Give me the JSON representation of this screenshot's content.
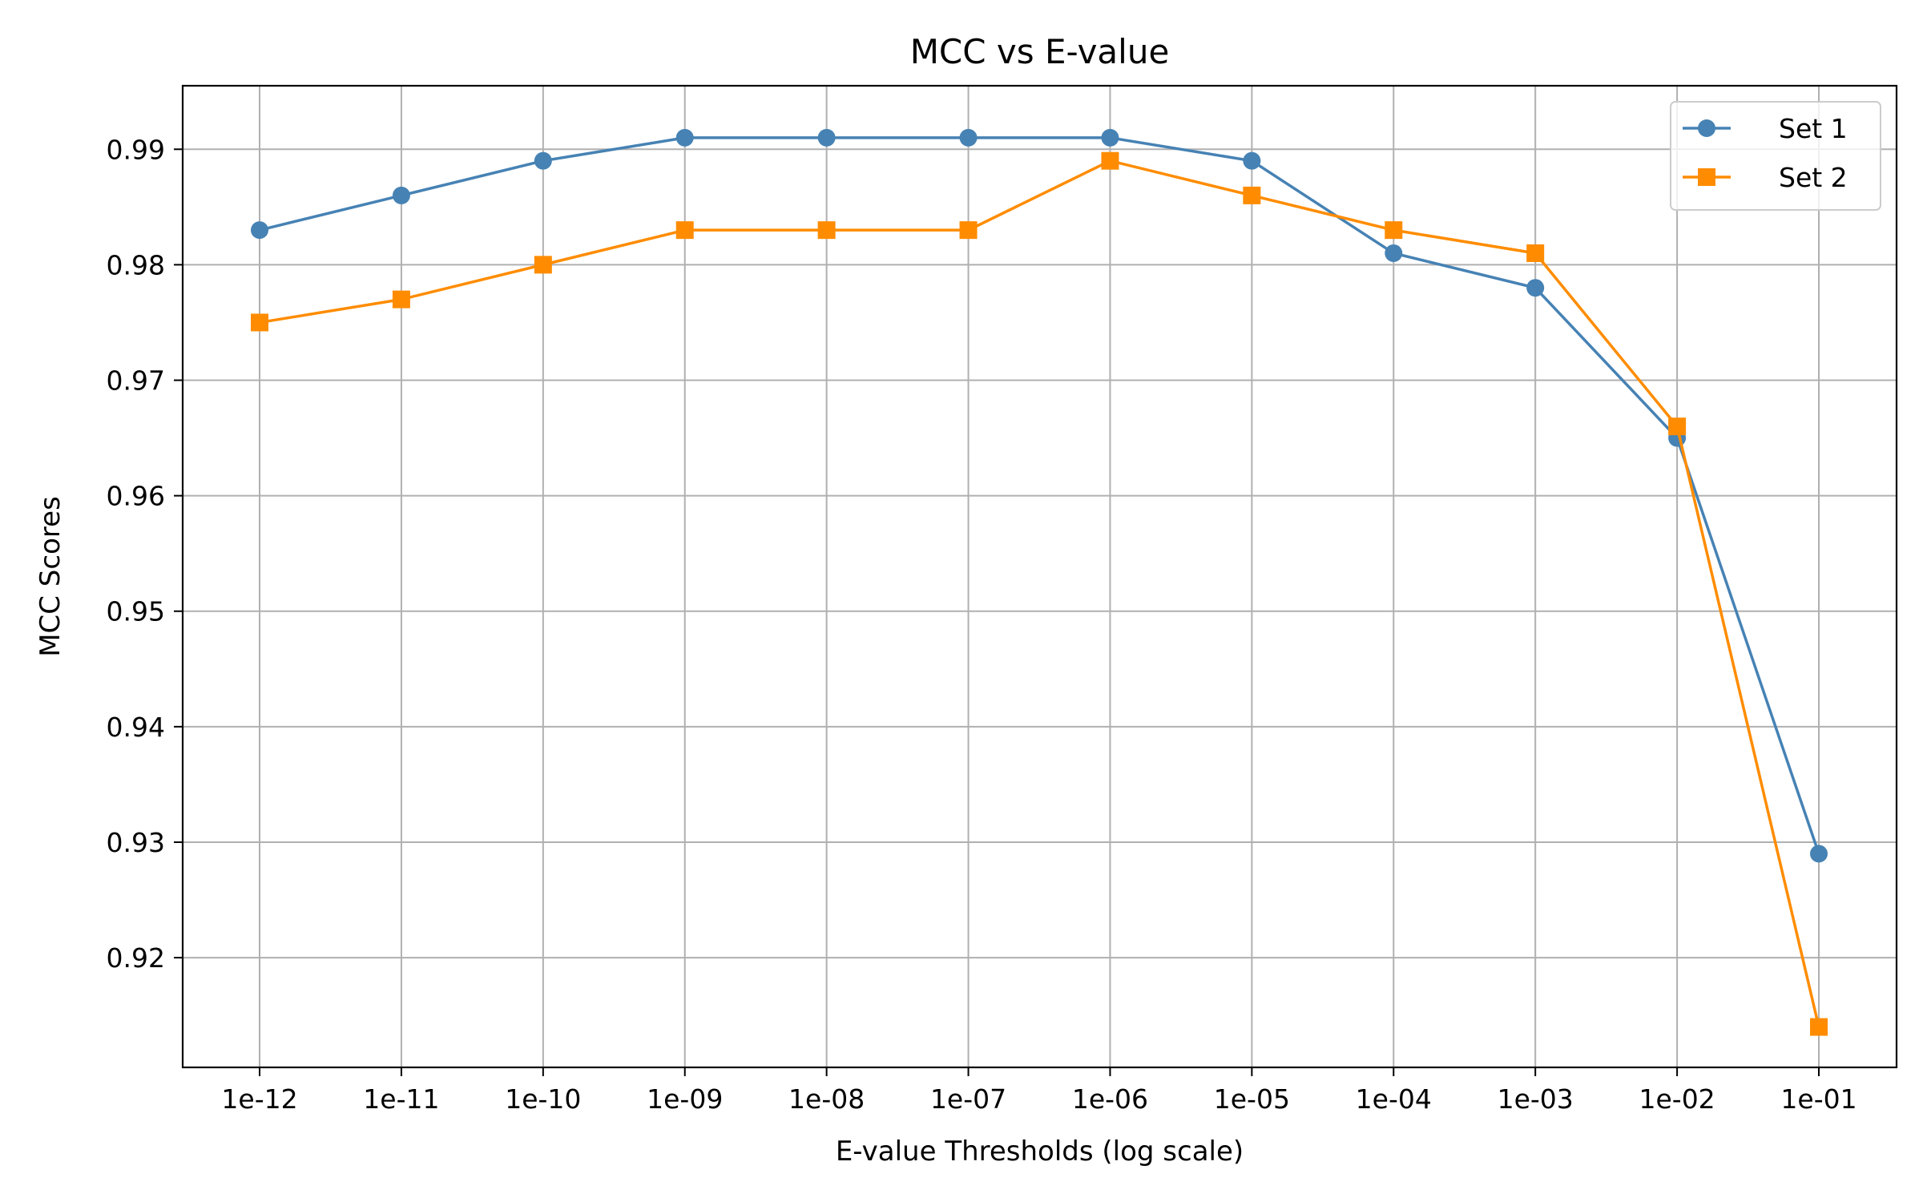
{
  "chart_data": {
    "type": "line",
    "title": "MCC vs E-value",
    "xlabel": "E-value Thresholds (log scale)",
    "ylabel": "MCC Scores",
    "x_scale": "log",
    "categories": [
      "1e-12",
      "1e-11",
      "1e-10",
      "1e-09",
      "1e-08",
      "1e-07",
      "1e-06",
      "1e-05",
      "1e-04",
      "1e-03",
      "1e-02",
      "1e-01"
    ],
    "x": [
      1e-12,
      1e-11,
      1e-10,
      1e-09,
      1e-08,
      1e-07,
      1e-06,
      1e-05,
      0.0001,
      0.001,
      0.01,
      0.1
    ],
    "yticks": [
      0.92,
      0.93,
      0.94,
      0.95,
      0.96,
      0.97,
      0.98,
      0.99
    ],
    "ytick_labels": [
      "0.92",
      "0.93",
      "0.94",
      "0.95",
      "0.96",
      "0.97",
      "0.98",
      "0.99"
    ],
    "ylim": [
      0.9105,
      0.9955
    ],
    "grid": true,
    "legend_position": "top-right",
    "series": [
      {
        "name": "Set 1",
        "color": "#4682b4",
        "marker": "circle",
        "values": [
          0.983,
          0.986,
          0.989,
          0.991,
          0.991,
          0.991,
          0.991,
          0.989,
          0.981,
          0.978,
          0.965,
          0.929
        ]
      },
      {
        "name": "Set 2",
        "color": "#ff8c00",
        "marker": "square",
        "values": [
          0.975,
          0.977,
          0.98,
          0.983,
          0.983,
          0.983,
          0.989,
          0.986,
          0.983,
          0.981,
          0.966,
          0.914
        ]
      }
    ]
  }
}
